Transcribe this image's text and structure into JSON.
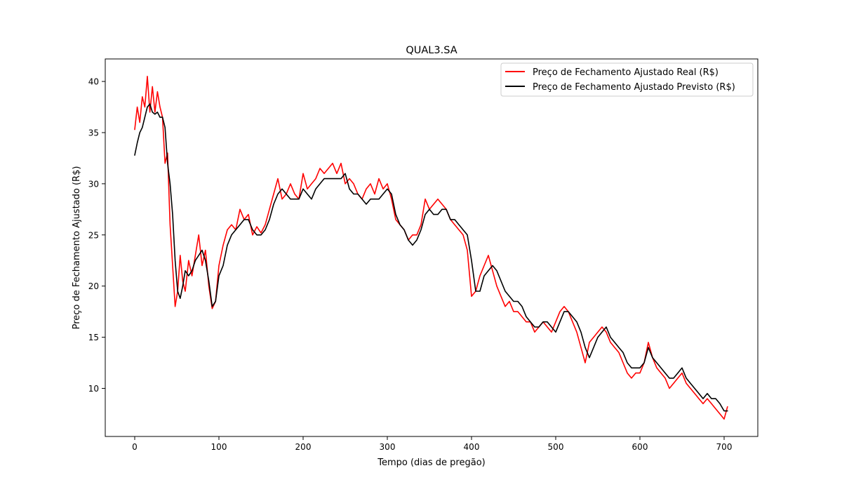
{
  "chart_data": {
    "type": "line",
    "title": "QUAL3.SA",
    "xlabel": "Tempo (dias de pregão)",
    "ylabel": "Preço de Fechamento Ajustado (R$)",
    "xlim": [
      -35,
      740
    ],
    "ylim": [
      5.3,
      42.2
    ],
    "xticks": [
      0,
      100,
      200,
      300,
      400,
      500,
      600,
      700
    ],
    "yticks": [
      10,
      15,
      20,
      25,
      30,
      35,
      40
    ],
    "grid": false,
    "legend_position": "top-right",
    "series": [
      {
        "name": "Preço de Fechamento Ajustado Real (R$)",
        "color": "#ff0000",
        "x": [
          0,
          3,
          6,
          9,
          12,
          15,
          18,
          21,
          24,
          27,
          30,
          33,
          36,
          39,
          42,
          45,
          48,
          51,
          54,
          57,
          60,
          64,
          68,
          72,
          76,
          80,
          84,
          88,
          92,
          96,
          100,
          105,
          110,
          115,
          120,
          125,
          130,
          135,
          140,
          145,
          150,
          155,
          160,
          165,
          170,
          175,
          180,
          185,
          190,
          195,
          200,
          205,
          210,
          215,
          220,
          225,
          230,
          235,
          240,
          245,
          250,
          255,
          260,
          265,
          270,
          275,
          280,
          285,
          290,
          295,
          300,
          305,
          310,
          315,
          320,
          325,
          330,
          335,
          340,
          345,
          350,
          355,
          360,
          365,
          370,
          375,
          380,
          385,
          390,
          395,
          400,
          405,
          410,
          415,
          420,
          425,
          430,
          435,
          440,
          445,
          450,
          455,
          460,
          465,
          470,
          475,
          480,
          485,
          490,
          495,
          500,
          505,
          510,
          515,
          520,
          525,
          530,
          535,
          540,
          545,
          550,
          555,
          560,
          565,
          570,
          575,
          580,
          585,
          590,
          595,
          600,
          605,
          610,
          615,
          620,
          625,
          630,
          635,
          640,
          645,
          650,
          655,
          660,
          665,
          670,
          675,
          680,
          685,
          690,
          695,
          700,
          704
        ],
        "values": [
          35.3,
          37.5,
          36.0,
          38.5,
          37.5,
          40.5,
          37.0,
          39.5,
          37.0,
          39.0,
          37.5,
          36.5,
          32.0,
          33.0,
          26.0,
          22.0,
          18.0,
          19.5,
          23.0,
          20.5,
          19.5,
          22.5,
          21.0,
          23.0,
          25.0,
          22.0,
          23.5,
          20.0,
          17.8,
          18.5,
          22.0,
          24.0,
          25.5,
          26.0,
          25.5,
          27.5,
          26.5,
          27.0,
          25.0,
          25.8,
          25.2,
          26.0,
          27.5,
          29.0,
          30.5,
          28.5,
          29.0,
          30.0,
          29.0,
          28.5,
          31.0,
          29.5,
          30.0,
          30.5,
          31.5,
          31.0,
          31.5,
          32.0,
          31.0,
          32.0,
          30.0,
          30.5,
          30.0,
          29.0,
          28.5,
          29.5,
          30.0,
          29.0,
          30.5,
          29.5,
          30.0,
          28.5,
          26.5,
          26.0,
          25.5,
          24.5,
          25.0,
          25.0,
          26.0,
          28.5,
          27.5,
          28.0,
          28.5,
          28.0,
          27.5,
          26.5,
          26.0,
          25.5,
          25.0,
          23.5,
          19.0,
          19.5,
          21.0,
          22.0,
          23.0,
          21.5,
          20.0,
          19.0,
          18.0,
          18.5,
          17.5,
          17.5,
          17.0,
          16.5,
          16.5,
          15.5,
          16.0,
          16.5,
          16.0,
          15.5,
          16.5,
          17.5,
          18.0,
          17.5,
          16.5,
          15.5,
          14.0,
          12.5,
          14.5,
          15.0,
          15.5,
          16.0,
          15.5,
          14.5,
          14.0,
          13.5,
          12.5,
          11.5,
          11.0,
          11.5,
          11.5,
          12.5,
          14.5,
          13.0,
          12.0,
          11.5,
          11.0,
          10.0,
          10.5,
          11.0,
          11.5,
          10.5,
          10.0,
          9.5,
          9.0,
          8.5,
          9.0,
          8.5,
          8.0,
          7.5,
          7.0,
          8.2
        ]
      },
      {
        "name": "Preço de Fechamento Ajustado Previsto (R$)",
        "color": "#000000",
        "x": [
          0,
          3,
          6,
          9,
          12,
          15,
          18,
          21,
          24,
          27,
          30,
          33,
          36,
          39,
          42,
          45,
          48,
          51,
          54,
          57,
          60,
          64,
          68,
          72,
          76,
          80,
          84,
          88,
          92,
          96,
          100,
          105,
          110,
          115,
          120,
          125,
          130,
          135,
          140,
          145,
          150,
          155,
          160,
          165,
          170,
          175,
          180,
          185,
          190,
          195,
          200,
          205,
          210,
          215,
          220,
          225,
          230,
          235,
          240,
          245,
          250,
          255,
          260,
          265,
          270,
          275,
          280,
          285,
          290,
          295,
          300,
          305,
          310,
          315,
          320,
          325,
          330,
          335,
          340,
          345,
          350,
          355,
          360,
          365,
          370,
          375,
          380,
          385,
          390,
          395,
          400,
          405,
          410,
          415,
          420,
          425,
          430,
          435,
          440,
          445,
          450,
          455,
          460,
          465,
          470,
          475,
          480,
          485,
          490,
          495,
          500,
          505,
          510,
          515,
          520,
          525,
          530,
          535,
          540,
          545,
          550,
          555,
          560,
          565,
          570,
          575,
          580,
          585,
          590,
          595,
          600,
          605,
          610,
          615,
          620,
          625,
          630,
          635,
          640,
          645,
          650,
          655,
          660,
          665,
          670,
          675,
          680,
          685,
          690,
          695,
          700,
          704
        ],
        "values": [
          32.8,
          34.0,
          35.0,
          35.5,
          36.5,
          37.5,
          37.8,
          37.0,
          36.8,
          37.0,
          36.5,
          36.5,
          35.5,
          32.0,
          30.0,
          27.0,
          22.5,
          19.5,
          18.8,
          20.0,
          21.5,
          21.0,
          21.5,
          22.5,
          23.0,
          23.5,
          22.5,
          20.5,
          18.0,
          18.5,
          21.0,
          22.0,
          24.0,
          25.0,
          25.5,
          26.0,
          26.5,
          26.5,
          25.5,
          25.0,
          25.0,
          25.5,
          26.5,
          28.0,
          29.0,
          29.5,
          29.0,
          28.5,
          28.5,
          28.5,
          29.5,
          29.0,
          28.5,
          29.5,
          30.0,
          30.5,
          30.5,
          30.5,
          30.5,
          30.5,
          31.0,
          29.5,
          29.0,
          29.0,
          28.5,
          28.0,
          28.5,
          28.5,
          28.5,
          29.0,
          29.5,
          29.0,
          27.0,
          26.0,
          25.5,
          24.5,
          24.0,
          24.5,
          25.5,
          27.0,
          27.5,
          27.0,
          27.0,
          27.5,
          27.5,
          26.5,
          26.5,
          26.0,
          25.5,
          25.0,
          22.5,
          19.5,
          19.5,
          21.0,
          21.5,
          22.0,
          21.5,
          20.5,
          19.5,
          19.0,
          18.5,
          18.5,
          18.0,
          17.0,
          16.5,
          16.0,
          16.0,
          16.5,
          16.5,
          16.0,
          15.5,
          16.5,
          17.5,
          17.5,
          17.0,
          16.5,
          15.5,
          14.0,
          13.0,
          14.0,
          15.0,
          15.5,
          16.0,
          15.0,
          14.5,
          14.0,
          13.5,
          12.5,
          12.0,
          12.0,
          12.0,
          12.5,
          14.0,
          13.0,
          12.5,
          12.0,
          11.5,
          11.0,
          11.0,
          11.5,
          12.0,
          11.0,
          10.5,
          10.0,
          9.5,
          9.0,
          9.5,
          9.0,
          9.0,
          8.5,
          7.8,
          7.8
        ]
      }
    ]
  }
}
